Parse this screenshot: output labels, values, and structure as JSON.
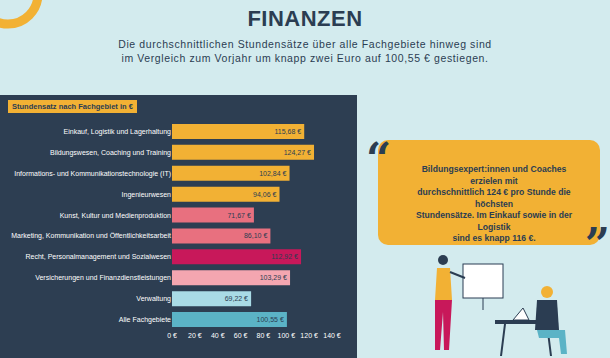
{
  "header": {
    "title": "FINANZEN",
    "subtitle": [
      "Die durchschnittlichen Stundensätze über alle Fachgebiete hinweg sind",
      "im Vergleich zum Vorjahr um knapp zwei Euro auf 100,55 € gestiegen."
    ]
  },
  "callout": {
    "quote_open": "“",
    "quote_close": "”",
    "lines": [
      "Bildungsexpert:innen und Coaches erzielen mit",
      "durchschnittlich 124 € pro Stunde die höchsten",
      "Stundensätze. Im Einkauf sowie in der Logistik",
      "sind es knapp 116 €."
    ]
  },
  "chart_data": {
    "type": "bar",
    "orientation": "horizontal",
    "title": "Stundensatz nach Fachgebiet in €",
    "categories": [
      "Einkauf, Logistik und Lagerhaltung",
      "Bildungswesen, Coaching und Training",
      "Informations- und Kommunikationstechnologie (IT)",
      "Ingenieurwesen",
      "Kunst, Kultur und Medienproduktion",
      "Marketing, Kommunikation und Öffentlichkeitsarbeit",
      "Recht, Personalmanagement und Sozialwesen",
      "Versicherungen und Finanzdienstleistungen",
      "Verwaltung",
      "Alle Fachgebiete"
    ],
    "values": [
      115.68,
      124.27,
      102.84,
      94.06,
      71.67,
      86.1,
      112.92,
      103.29,
      69.22,
      100.55
    ],
    "value_labels": [
      "115,68 €",
      "124,27 €",
      "102,84 €",
      "94,06 €",
      "71,67 €",
      "86,10 €",
      "112,92 €",
      "103,29 €",
      "69,22 €",
      "100,55 €"
    ],
    "colors": [
      "#f2b134",
      "#f2b134",
      "#f2b134",
      "#f2b134",
      "#e8707f",
      "#e8707f",
      "#c8185a",
      "#f4a6b0",
      "#a9dbe6",
      "#5bb3c6"
    ],
    "xlim": [
      0,
      140
    ],
    "xticks": [
      {
        "value": 0,
        "label": "0 €"
      },
      {
        "value": 20,
        "label": "20 €"
      },
      {
        "value": 40,
        "label": "40 €"
      },
      {
        "value": 60,
        "label": "60 €"
      },
      {
        "value": 80,
        "label": "80 €"
      },
      {
        "value": 100,
        "label": "100 €"
      },
      {
        "value": 120,
        "label": "120 €"
      },
      {
        "value": 140,
        "label": "140 €"
      }
    ],
    "grid": false,
    "data_labels": true
  }
}
